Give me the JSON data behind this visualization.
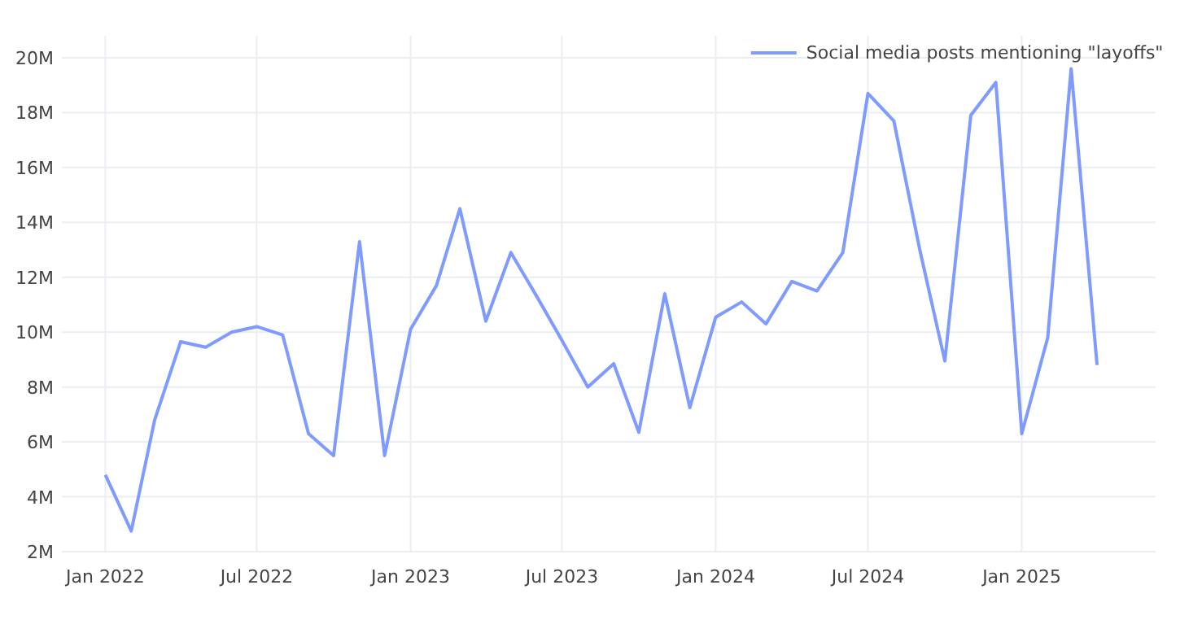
{
  "chart_data": {
    "type": "line",
    "legend": "top right",
    "grid": true,
    "xlim": [
      "2021-11-10",
      "2025-06-10"
    ],
    "xticks": [
      {
        "value": "2022-01",
        "label": "Jan 2022"
      },
      {
        "value": "2022-07",
        "label": "Jul 2022"
      },
      {
        "value": "2023-01",
        "label": "Jan 2023"
      },
      {
        "value": "2023-07",
        "label": "Jul 2023"
      },
      {
        "value": "2024-01",
        "label": "Jan 2024"
      },
      {
        "value": "2024-07",
        "label": "Jul 2024"
      },
      {
        "value": "2025-01",
        "label": "Jan 2025"
      }
    ],
    "ylim": [
      2000000,
      20800000
    ],
    "yticks": [
      {
        "value": 2000000,
        "label": "2M"
      },
      {
        "value": 4000000,
        "label": "4M"
      },
      {
        "value": 6000000,
        "label": "6M"
      },
      {
        "value": 8000000,
        "label": "8M"
      },
      {
        "value": 10000000,
        "label": "10M"
      },
      {
        "value": 12000000,
        "label": "12M"
      },
      {
        "value": 14000000,
        "label": "14M"
      },
      {
        "value": 16000000,
        "label": "16M"
      },
      {
        "value": 18000000,
        "label": "18M"
      },
      {
        "value": 20000000,
        "label": "20M"
      }
    ],
    "x": [
      "2022-01",
      "2022-02",
      "2022-03",
      "2022-04",
      "2022-05",
      "2022-06",
      "2022-07",
      "2022-08",
      "2022-09",
      "2022-10",
      "2022-11",
      "2022-12",
      "2023-01",
      "2023-02",
      "2023-03",
      "2023-04",
      "2023-05",
      "2023-06",
      "2023-07",
      "2023-08",
      "2023-09",
      "2023-10",
      "2023-11",
      "2023-12",
      "2024-01",
      "2024-02",
      "2024-03",
      "2024-04",
      "2024-05",
      "2024-06",
      "2024-07",
      "2024-08",
      "2024-09",
      "2024-10",
      "2024-11",
      "2024-12",
      "2025-01",
      "2025-02",
      "2025-03",
      "2025-04"
    ],
    "series": [
      {
        "name": "Social media posts mentioning \"layoffs\"",
        "color": "#7f9bff",
        "values": [
          4800000,
          2750000,
          6800000,
          9650000,
          9450000,
          10000000,
          10200000,
          9900000,
          6300000,
          5500000,
          13300000,
          5500000,
          10100000,
          11700000,
          14500000,
          10400000,
          12900000,
          11300000,
          9700000,
          8000000,
          8850000,
          6350000,
          11400000,
          7250000,
          10550000,
          11100000,
          10300000,
          11850000,
          11500000,
          12900000,
          18700000,
          17700000,
          13000000,
          8950000,
          17900000,
          19100000,
          6300000,
          9800000,
          19600000,
          8800000
        ]
      }
    ]
  }
}
